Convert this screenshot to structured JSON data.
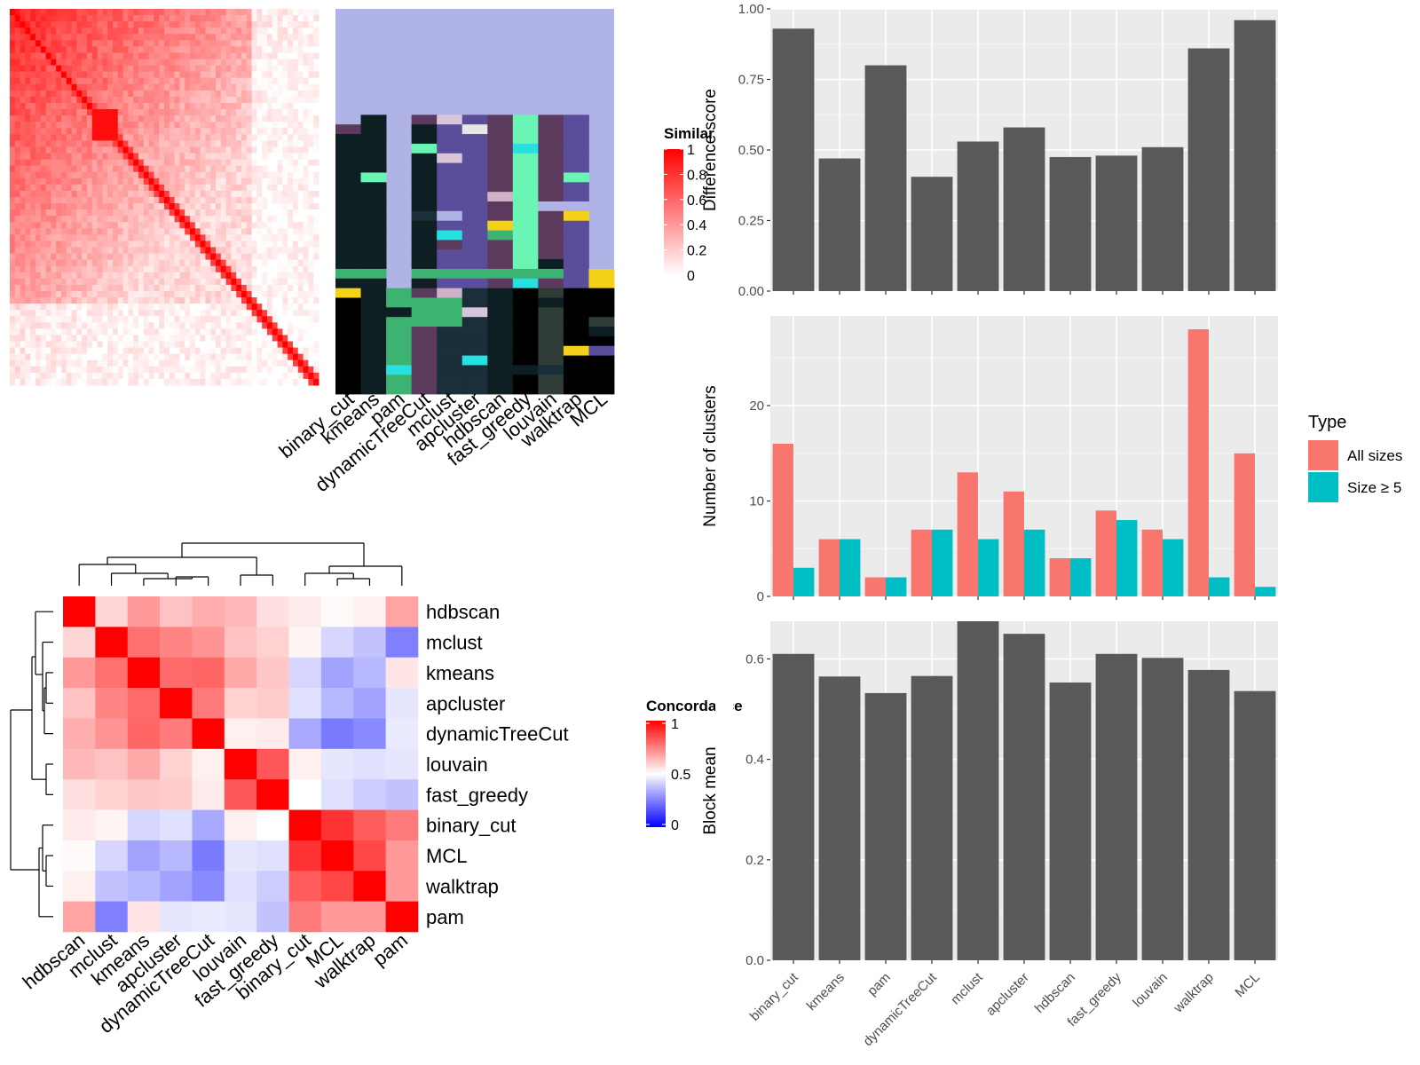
{
  "colors": {
    "panel_bg": "#EBEBEB",
    "bar": "#595959",
    "all_sizes": "#F8766D",
    "size_ge_5": "#00BFC4",
    "sim_high": "#FF0000",
    "conc_high": "#FF0000",
    "conc_mid": "#FFFFFF",
    "conc_low": "#0000FF",
    "cluster_bg": "#B0B3E6"
  },
  "similarity_heatmap": {
    "legend_title": "Similarity",
    "legend_ticks": [
      "1",
      "0.8",
      "0.6",
      "0.4",
      "0.2",
      "0"
    ]
  },
  "cluster_matrix": {
    "methods": [
      "binary_cut",
      "kmeans",
      "pam",
      "dynamicTreeCut",
      "mclust",
      "apcluster",
      "hdbscan",
      "fast_greedy",
      "louvain",
      "walktrap",
      "MCL"
    ]
  },
  "chart_data": [
    {
      "type": "heatmap",
      "name_hint": "concordance",
      "legend_title": "Concordance",
      "legend_ticks": [
        "1",
        "0.5",
        "0"
      ],
      "rows": [
        "hdbscan",
        "mclust",
        "kmeans",
        "apcluster",
        "dynamicTreeCut",
        "louvain",
        "fast_greedy",
        "binary_cut",
        "MCL",
        "walktrap",
        "pam"
      ],
      "cols": [
        "hdbscan",
        "mclust",
        "kmeans",
        "apcluster",
        "dynamicTreeCut",
        "louvain",
        "fast_greedy",
        "binary_cut",
        "MCL",
        "walktrap",
        "pam"
      ],
      "values": [
        [
          1.0,
          0.58,
          0.7,
          0.62,
          0.66,
          0.64,
          0.56,
          0.54,
          0.51,
          0.53,
          0.68
        ],
        [
          0.58,
          1.0,
          0.78,
          0.74,
          0.71,
          0.62,
          0.59,
          0.52,
          0.42,
          0.38,
          0.25
        ],
        [
          0.7,
          0.78,
          1.0,
          0.79,
          0.8,
          0.67,
          0.61,
          0.42,
          0.32,
          0.36,
          0.55
        ],
        [
          0.62,
          0.74,
          0.79,
          1.0,
          0.76,
          0.59,
          0.6,
          0.44,
          0.36,
          0.32,
          0.45
        ],
        [
          0.66,
          0.71,
          0.8,
          0.76,
          1.0,
          0.53,
          0.54,
          0.33,
          0.24,
          0.27,
          0.46
        ],
        [
          0.64,
          0.62,
          0.67,
          0.59,
          0.53,
          1.0,
          0.83,
          0.53,
          0.45,
          0.44,
          0.45
        ],
        [
          0.56,
          0.59,
          0.61,
          0.6,
          0.54,
          0.83,
          1.0,
          0.5,
          0.44,
          0.4,
          0.38
        ],
        [
          0.54,
          0.52,
          0.42,
          0.44,
          0.33,
          0.53,
          0.5,
          1.0,
          0.9,
          0.82,
          0.76
        ],
        [
          0.51,
          0.42,
          0.32,
          0.36,
          0.24,
          0.45,
          0.44,
          0.9,
          1.0,
          0.86,
          0.7
        ],
        [
          0.53,
          0.38,
          0.36,
          0.32,
          0.27,
          0.44,
          0.4,
          0.82,
          0.86,
          1.0,
          0.7
        ],
        [
          0.68,
          0.25,
          0.55,
          0.45,
          0.46,
          0.45,
          0.38,
          0.76,
          0.7,
          0.7,
          1.0
        ]
      ]
    },
    {
      "type": "bar",
      "categories": [
        "binary_cut",
        "kmeans",
        "pam",
        "dynamicTreeCut",
        "mclust",
        "apcluster",
        "hdbscan",
        "fast_greedy",
        "louvain",
        "walktrap",
        "MCL"
      ],
      "values": [
        0.93,
        0.47,
        0.8,
        0.405,
        0.53,
        0.58,
        0.475,
        0.48,
        0.51,
        0.86,
        0.96
      ],
      "xlabel": "",
      "ylabel": "Difference score",
      "ylim": [
        0,
        1.0
      ],
      "yticks": [
        "0.00",
        "0.25",
        "0.50",
        "0.75",
        "1.00"
      ],
      "grid": true
    },
    {
      "type": "bar",
      "categories": [
        "binary_cut",
        "kmeans",
        "pam",
        "dynamicTreeCut",
        "mclust",
        "apcluster",
        "hdbscan",
        "fast_greedy",
        "louvain",
        "walktrap",
        "MCL"
      ],
      "series": [
        {
          "name": "All sizes",
          "values": [
            16,
            6,
            2,
            7,
            13,
            11,
            4,
            9,
            7,
            28,
            15
          ]
        },
        {
          "name": "Size ≥ 5",
          "values": [
            3,
            6,
            2,
            7,
            6,
            7,
            4,
            8,
            6,
            2,
            1
          ]
        }
      ],
      "xlabel": "",
      "ylabel": "Number of clusters",
      "ylim": [
        0,
        29.4
      ],
      "yticks": [
        "0",
        "10",
        "20"
      ],
      "legend_title": "Type",
      "legend_position": "right",
      "grid": true
    },
    {
      "type": "bar",
      "categories": [
        "binary_cut",
        "kmeans",
        "pam",
        "dynamicTreeCut",
        "mclust",
        "apcluster",
        "hdbscan",
        "fast_greedy",
        "louvain",
        "walktrap",
        "MCL"
      ],
      "values": [
        0.61,
        0.565,
        0.532,
        0.566,
        0.675,
        0.65,
        0.553,
        0.61,
        0.602,
        0.578,
        0.536
      ],
      "xlabel": "",
      "ylabel": "Block mean",
      "ylim": [
        0,
        0.675
      ],
      "yticks": [
        "0.0",
        "0.2",
        "0.4",
        "0.6"
      ],
      "grid": true
    }
  ]
}
